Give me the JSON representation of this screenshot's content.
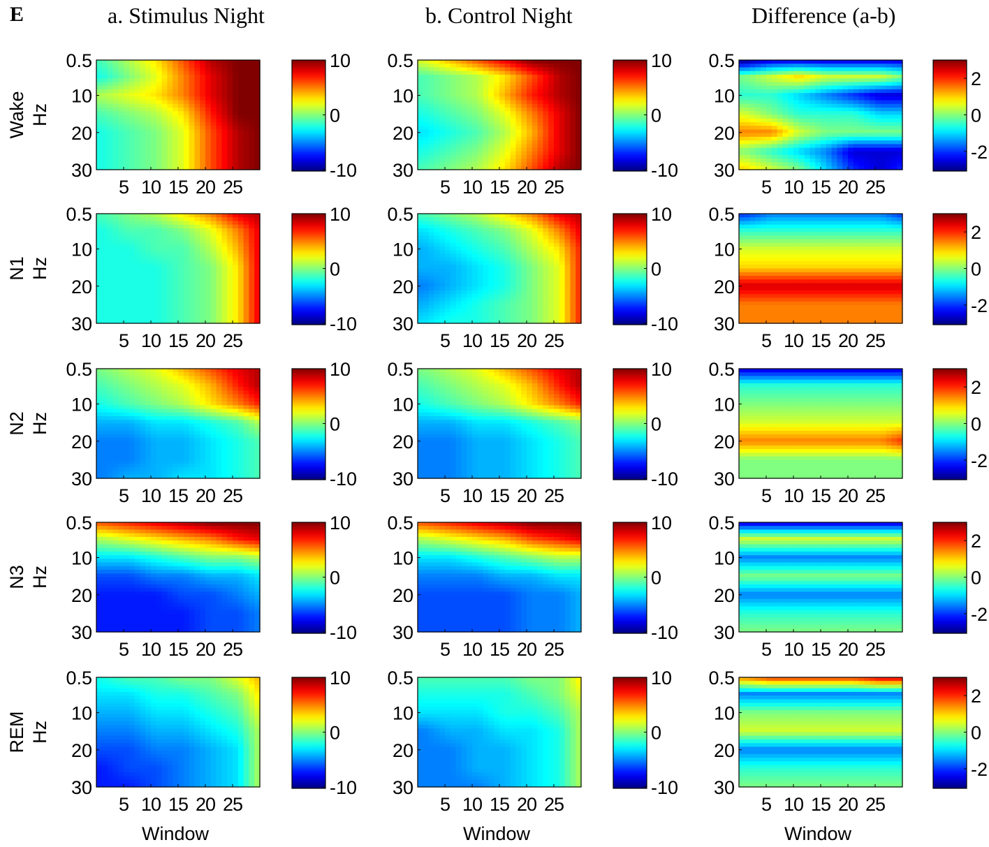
{
  "panel_label": "E",
  "columns": [
    {
      "id": "stim",
      "title": "a. Stimulus Night",
      "cbar_ticks": [
        "10",
        "0",
        "-10"
      ],
      "cbar_values": [
        10,
        0,
        -10
      ],
      "clim": [
        -10,
        10
      ]
    },
    {
      "id": "ctrl",
      "title": "b. Control Night",
      "cbar_ticks": [
        "10",
        "0",
        "-10"
      ],
      "cbar_values": [
        10,
        0,
        -10
      ],
      "clim": [
        -10,
        10
      ]
    },
    {
      "id": "diff",
      "title": "Difference (a-b)",
      "cbar_ticks": [
        "2",
        "0",
        "-2"
      ],
      "cbar_values": [
        2,
        0,
        -2
      ],
      "clim": [
        -3,
        3
      ]
    }
  ],
  "rows": [
    {
      "id": "wake",
      "stage_label": "Wake"
    },
    {
      "id": "n1",
      "stage_label": "N1"
    },
    {
      "id": "n2",
      "stage_label": "N2"
    },
    {
      "id": "n3",
      "stage_label": "N3"
    },
    {
      "id": "rem",
      "stage_label": "REM"
    }
  ],
  "ylabel": "Hz",
  "xlabel": "Window",
  "x_ticks": [
    "5",
    "10",
    "15",
    "20",
    "25"
  ],
  "x_tick_values": [
    5,
    10,
    15,
    20,
    25
  ],
  "y_ticks": [
    "0.5",
    "10",
    "20",
    "30"
  ],
  "y_tick_values": [
    0.5,
    10,
    20,
    30
  ],
  "colormap": "jet",
  "chart_data": {
    "type": "heatmap",
    "x_range": [
      0,
      30
    ],
    "y_range": [
      0.5,
      30
    ],
    "y_reversed": true,
    "x_ticks": [
      5,
      10,
      15,
      20,
      25
    ],
    "y_ticks": [
      0.5,
      10,
      20,
      30
    ],
    "xlabel": "Window",
    "ylabel": "Hz",
    "grid_x": [
      1,
      6,
      11,
      16,
      21,
      26,
      30
    ],
    "grid_y": [
      0.5,
      5,
      10,
      15,
      20,
      25,
      30
    ],
    "panels": [
      {
        "row": "Wake",
        "column": "a. Stimulus Night",
        "clim": [
          -10,
          10
        ],
        "z": [
          [
            -1,
            1,
            3,
            6,
            9,
            10,
            10
          ],
          [
            -2,
            0,
            2,
            5,
            8,
            10,
            10
          ],
          [
            1,
            2,
            3,
            5,
            8,
            10,
            10
          ],
          [
            -1,
            0,
            1,
            3,
            7,
            10,
            10
          ],
          [
            -2,
            -1,
            0,
            2,
            6,
            9,
            10
          ],
          [
            -2,
            -1,
            0,
            2,
            6,
            9,
            10
          ],
          [
            -2,
            -1,
            0,
            2,
            6,
            9,
            10
          ]
        ]
      },
      {
        "row": "Wake",
        "column": "b. Control Night",
        "clim": [
          -10,
          10
        ],
        "z": [
          [
            2,
            4,
            6,
            8,
            10,
            10,
            10
          ],
          [
            -1,
            0,
            1,
            3,
            6,
            9,
            10
          ],
          [
            -1,
            0,
            1,
            4,
            7,
            9,
            10
          ],
          [
            -2,
            -1,
            0,
            2,
            5,
            8,
            10
          ],
          [
            -3,
            -2,
            -1,
            1,
            4,
            8,
            10
          ],
          [
            -2,
            -1,
            0,
            2,
            5,
            8,
            10
          ],
          [
            -1,
            0,
            1,
            3,
            6,
            9,
            10
          ]
        ]
      },
      {
        "row": "Wake",
        "column": "Difference (a-b)",
        "clim": [
          -3,
          3
        ],
        "z": [
          [
            -3,
            -2.5,
            -2.5,
            -2.5,
            -2.5,
            -2.5,
            -2.5
          ],
          [
            0,
            0.5,
            1,
            0.5,
            0.5,
            0.5,
            0
          ],
          [
            -0.5,
            -0.5,
            -1,
            -1.5,
            -2,
            -2.5,
            -2.5
          ],
          [
            0.5,
            0,
            -0.5,
            -0.5,
            -0.5,
            -1,
            -1
          ],
          [
            1.5,
            1.5,
            0.5,
            0,
            0,
            0,
            0
          ],
          [
            0,
            -0.5,
            -1,
            -1.5,
            -2.5,
            -2.5,
            -2.5
          ],
          [
            1,
            0.5,
            0,
            -1,
            -2,
            -2.5,
            -2
          ]
        ]
      },
      {
        "row": "N1",
        "column": "a. Stimulus Night",
        "clim": [
          -10,
          10
        ],
        "z": [
          [
            -1,
            0,
            1,
            3,
            5,
            8,
            9
          ],
          [
            -2,
            -1,
            -1,
            0,
            2,
            5,
            8
          ],
          [
            -2,
            -2,
            -1,
            -1,
            1,
            4,
            8
          ],
          [
            -2,
            -2,
            -2,
            -1,
            0,
            3,
            8
          ],
          [
            -2,
            -2,
            -2,
            -1,
            0,
            3,
            8
          ],
          [
            -2,
            -2,
            -2,
            -1,
            0,
            3,
            8
          ],
          [
            -2,
            -2,
            -2,
            -1,
            0,
            3,
            8
          ]
        ]
      },
      {
        "row": "N1",
        "column": "b. Control Night",
        "clim": [
          -10,
          10
        ],
        "z": [
          [
            -1,
            0,
            1,
            3,
            5,
            8,
            9
          ],
          [
            -3,
            -2,
            -1,
            0,
            2,
            5,
            8
          ],
          [
            -4,
            -3,
            -2,
            -1,
            1,
            3,
            7
          ],
          [
            -4,
            -4,
            -3,
            -2,
            0,
            2,
            7
          ],
          [
            -5,
            -4,
            -3,
            -2,
            0,
            2,
            7
          ],
          [
            -4,
            -3,
            -2,
            -1,
            0,
            2,
            7
          ],
          [
            -3,
            -2,
            -2,
            -1,
            0,
            2,
            7
          ]
        ]
      },
      {
        "row": "N1",
        "column": "Difference (a-b)",
        "clim": [
          -3,
          3
        ],
        "z": [
          [
            -2,
            -1.5,
            -1.5,
            -1.5,
            -1.5,
            -1.5,
            -2
          ],
          [
            -0.5,
            -0.5,
            -0.5,
            -0.5,
            -0.5,
            -0.5,
            -0.5
          ],
          [
            0.5,
            0.5,
            0.5,
            0.5,
            0.5,
            0.5,
            0.5
          ],
          [
            1,
            1,
            1,
            1,
            1,
            1,
            1
          ],
          [
            2.5,
            2.5,
            2.5,
            2.5,
            2.5,
            2.5,
            2.5
          ],
          [
            1.5,
            1.5,
            1.5,
            1.5,
            1.5,
            1.5,
            1.5
          ],
          [
            1.5,
            1.5,
            1.5,
            1.5,
            1.5,
            1.5,
            1.5
          ]
        ]
      },
      {
        "row": "N2",
        "column": "a. Stimulus Night",
        "clim": [
          -10,
          10
        ],
        "z": [
          [
            0,
            1,
            2,
            4,
            6,
            8,
            9
          ],
          [
            -1,
            0,
            1,
            2,
            4,
            7,
            9
          ],
          [
            -2,
            -1,
            0,
            1,
            3,
            5,
            7
          ],
          [
            -4,
            -4,
            -3,
            -3,
            -2,
            -1,
            1
          ],
          [
            -5,
            -5,
            -4,
            -4,
            -3,
            -2,
            -1
          ],
          [
            -5,
            -5,
            -4,
            -4,
            -3,
            -2,
            -1
          ],
          [
            -5,
            -4,
            -4,
            -3,
            -3,
            -2,
            -1
          ]
        ]
      },
      {
        "row": "N2",
        "column": "b. Control Night",
        "clim": [
          -10,
          10
        ],
        "z": [
          [
            0,
            1,
            2,
            4,
            6,
            8,
            9
          ],
          [
            -1,
            0,
            1,
            2,
            4,
            7,
            9
          ],
          [
            -2,
            -1,
            0,
            1,
            3,
            5,
            7
          ],
          [
            -4,
            -4,
            -3,
            -3,
            -2,
            -1,
            0
          ],
          [
            -5,
            -5,
            -4,
            -4,
            -3,
            -2,
            -1
          ],
          [
            -5,
            -5,
            -4,
            -4,
            -3,
            -2,
            -1
          ],
          [
            -5,
            -5,
            -4,
            -4,
            -3,
            -2,
            -1
          ]
        ]
      },
      {
        "row": "N2",
        "column": "Difference (a-b)",
        "clim": [
          -3,
          3
        ],
        "z": [
          [
            -2.5,
            -2.5,
            -2.5,
            -2.5,
            -2.5,
            -2.5,
            -2.5
          ],
          [
            -0.5,
            -0.5,
            -0.5,
            -0.5,
            -0.5,
            -0.5,
            -0.5
          ],
          [
            0,
            0,
            0,
            0,
            0,
            0,
            0
          ],
          [
            0.5,
            0.5,
            0.5,
            0.5,
            0.5,
            0.5,
            0.5
          ],
          [
            1.5,
            1.5,
            1.5,
            1.5,
            1.5,
            1.5,
            2
          ],
          [
            0,
            0,
            0,
            0,
            0,
            0,
            0
          ],
          [
            0,
            0,
            0,
            0,
            0,
            0,
            0
          ]
        ]
      },
      {
        "row": "N3",
        "column": "a. Stimulus Night",
        "clim": [
          -10,
          10
        ],
        "z": [
          [
            6,
            7,
            8,
            9,
            10,
            10,
            10
          ],
          [
            1,
            2,
            3,
            4,
            5,
            7,
            8
          ],
          [
            -3,
            -3,
            -2,
            -1,
            0,
            0,
            1
          ],
          [
            -6,
            -6,
            -5,
            -5,
            -4,
            -4,
            -3
          ],
          [
            -7,
            -7,
            -7,
            -6,
            -6,
            -5,
            -4
          ],
          [
            -7,
            -7,
            -7,
            -7,
            -6,
            -6,
            -5
          ],
          [
            -7,
            -7,
            -7,
            -7,
            -6,
            -6,
            -5
          ]
        ]
      },
      {
        "row": "N3",
        "column": "b. Control Night",
        "clim": [
          -10,
          10
        ],
        "z": [
          [
            6,
            7,
            8,
            9,
            10,
            10,
            10
          ],
          [
            1,
            2,
            3,
            4,
            6,
            7,
            8
          ],
          [
            -3,
            -3,
            -2,
            -1,
            0,
            1,
            1
          ],
          [
            -5,
            -5,
            -5,
            -4,
            -4,
            -3,
            -3
          ],
          [
            -6,
            -6,
            -6,
            -6,
            -5,
            -5,
            -4
          ],
          [
            -6,
            -6,
            -6,
            -6,
            -5,
            -5,
            -4
          ],
          [
            -6,
            -6,
            -6,
            -6,
            -5,
            -5,
            -4
          ]
        ]
      },
      {
        "row": "N3",
        "column": "Difference (a-b)",
        "clim": [
          -3,
          3
        ],
        "z": [
          [
            -2.5,
            -2.5,
            -2.5,
            -2.5,
            -2.5,
            -2.5,
            -2.5
          ],
          [
            0.5,
            0.5,
            0.5,
            0.5,
            0.5,
            0.5,
            0.5
          ],
          [
            -1.5,
            -1.5,
            -1.5,
            -1.5,
            -1.5,
            -1.5,
            -1.5
          ],
          [
            0,
            0,
            0,
            0,
            0,
            0,
            0
          ],
          [
            -1.5,
            -1.5,
            -1.5,
            -1.5,
            -1.5,
            -1.5,
            -1.5
          ],
          [
            -0.5,
            -0.5,
            -0.5,
            -0.5,
            -0.5,
            -0.5,
            -0.5
          ],
          [
            0,
            0,
            0,
            0,
            0,
            0,
            0
          ]
        ]
      },
      {
        "row": "REM",
        "column": "a. Stimulus Night",
        "clim": [
          -10,
          10
        ],
        "z": [
          [
            -2,
            -1,
            -1,
            0,
            0,
            2,
            4
          ],
          [
            -3,
            -3,
            -2,
            -2,
            -1,
            0,
            3
          ],
          [
            -4,
            -4,
            -3,
            -3,
            -2,
            -1,
            2
          ],
          [
            -5,
            -5,
            -4,
            -4,
            -3,
            -2,
            1
          ],
          [
            -6,
            -6,
            -5,
            -5,
            -4,
            -3,
            1
          ],
          [
            -7,
            -6,
            -6,
            -5,
            -4,
            -3,
            1
          ],
          [
            -7,
            -7,
            -6,
            -5,
            -4,
            -3,
            1
          ]
        ]
      },
      {
        "row": "REM",
        "column": "b. Control Night",
        "clim": [
          -10,
          10
        ],
        "z": [
          [
            -1,
            -1,
            -1,
            -1,
            0,
            0,
            3
          ],
          [
            -2,
            -2,
            -2,
            -2,
            -1,
            0,
            2
          ],
          [
            -3,
            -3,
            -3,
            -2,
            -2,
            -1,
            1
          ],
          [
            -5,
            -4,
            -4,
            -3,
            -3,
            -2,
            1
          ],
          [
            -5,
            -5,
            -4,
            -4,
            -3,
            -2,
            1
          ],
          [
            -5,
            -5,
            -4,
            -4,
            -3,
            -2,
            1
          ],
          [
            -5,
            -5,
            -5,
            -4,
            -3,
            -2,
            1
          ]
        ]
      },
      {
        "row": "REM",
        "column": "Difference (a-b)",
        "clim": [
          -3,
          3
        ],
        "z": [
          [
            1.5,
            2,
            2,
            2,
            2,
            2.5,
            2.5
          ],
          [
            -1.5,
            -1.5,
            -1.5,
            -1.5,
            -1.5,
            -1.5,
            -1.5
          ],
          [
            0,
            0,
            0,
            0,
            0,
            0,
            0
          ],
          [
            0.5,
            0.5,
            0.5,
            0.5,
            0.5,
            0.5,
            0.5
          ],
          [
            -1.5,
            -1.5,
            -1.5,
            -1.5,
            -1.5,
            -1.5,
            -1.5
          ],
          [
            -0.5,
            -0.5,
            -0.5,
            -0.5,
            -0.5,
            -0.5,
            -0.5
          ],
          [
            0,
            0,
            0,
            0,
            0,
            0,
            0
          ]
        ]
      }
    ]
  }
}
